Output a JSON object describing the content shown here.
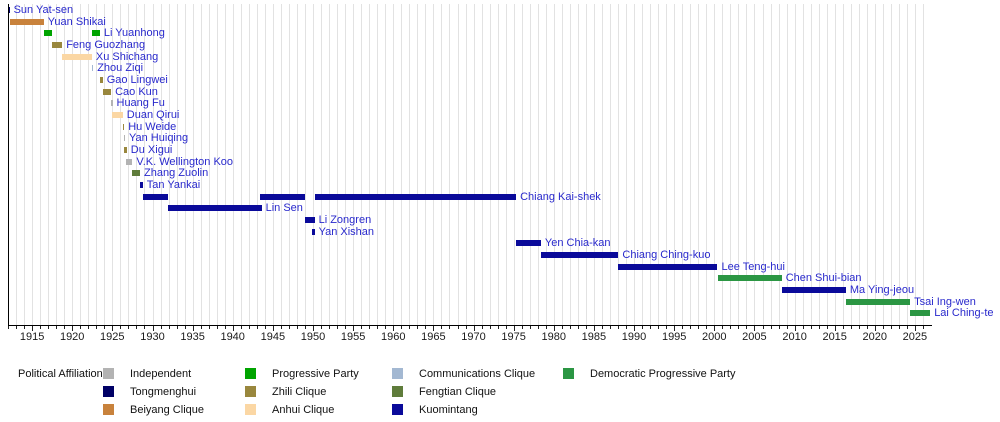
{
  "chart_data": {
    "type": "timeline",
    "title": "",
    "xlabel": "",
    "ylabel": "",
    "grid": "vertical, every year",
    "legend_position": "bottom",
    "x_axis": {
      "min": 1912,
      "max": 2027,
      "minor_tick_interval": 1,
      "major_tick_interval": 5,
      "tick_labels": [
        "1915",
        "1920",
        "1925",
        "1930",
        "1935",
        "1940",
        "1945",
        "1950",
        "1955",
        "1960",
        "1965",
        "1970",
        "1975",
        "1980",
        "1985",
        "1990",
        "1995",
        "2000",
        "2005",
        "2010",
        "2015",
        "2020",
        "2025"
      ]
    },
    "palette": {
      "independent": "#b3b3b3",
      "tongmenghui": "#000066",
      "beiyang": "#c8823c",
      "progressive": "#00a400",
      "zhili": "#99873d",
      "anhui": "#fbd7a4",
      "communications": "#a3b8d2",
      "fengtian": "#5f7c3b",
      "kuomintang": "#0a0a9a",
      "dpp": "#2b9643",
      "label_link": "#2929cc",
      "gridline": "#e2e2e2",
      "axis": "#000000"
    },
    "presidents": [
      {
        "name": "Sun Yat-sen",
        "affiliation": "tongmenghui",
        "terms": [
          [
            1912.0,
            1912.2
          ]
        ]
      },
      {
        "name": "Yuan Shikai",
        "affiliation": "beiyang",
        "terms": [
          [
            1912.2,
            1916.45
          ]
        ]
      },
      {
        "name": "Li Yuanhong",
        "affiliation": "progressive",
        "terms": [
          [
            1916.45,
            1917.5
          ],
          [
            1922.45,
            1923.45
          ]
        ]
      },
      {
        "name": "Feng Guozhang",
        "affiliation": "zhili",
        "terms": [
          [
            1917.5,
            1918.75
          ]
        ]
      },
      {
        "name": "Xu Shichang",
        "affiliation": "anhui",
        "terms": [
          [
            1918.75,
            1922.45
          ]
        ]
      },
      {
        "name": "Zhou Ziqi",
        "affiliation": "communications",
        "terms": [
          [
            1922.42,
            1922.62
          ]
        ]
      },
      {
        "name": "Gao Lingwei",
        "affiliation": "zhili",
        "terms": [
          [
            1923.45,
            1923.8
          ]
        ]
      },
      {
        "name": "Cao Kun",
        "affiliation": "zhili",
        "terms": [
          [
            1923.8,
            1924.85
          ]
        ]
      },
      {
        "name": "Huang Fu",
        "affiliation": "independent",
        "terms": [
          [
            1924.85,
            1925.02
          ]
        ]
      },
      {
        "name": "Duan Qirui",
        "affiliation": "anhui",
        "terms": [
          [
            1924.9,
            1926.3
          ]
        ]
      },
      {
        "name": "Hu Weide",
        "affiliation": "zhili",
        "terms": [
          [
            1926.3,
            1926.48
          ]
        ]
      },
      {
        "name": "Yan Huiqing",
        "affiliation": "independent",
        "terms": [
          [
            1926.4,
            1926.58
          ]
        ]
      },
      {
        "name": "Du Xigui",
        "affiliation": "zhili",
        "terms": [
          [
            1926.5,
            1926.8
          ]
        ]
      },
      {
        "name": "V.K. Wellington Koo",
        "affiliation": "independent",
        "terms": [
          [
            1926.75,
            1927.5
          ]
        ]
      },
      {
        "name": "Zhang Zuolin",
        "affiliation": "fengtian",
        "terms": [
          [
            1927.45,
            1928.45
          ]
        ]
      },
      {
        "name": "Tan Yankai",
        "affiliation": "kuomintang",
        "terms": [
          [
            1928.45,
            1928.8
          ]
        ]
      },
      {
        "name": "Chiang Kai-shek",
        "affiliation": "kuomintang",
        "terms": [
          [
            1928.8,
            1931.95
          ],
          [
            1943.4,
            1949.05
          ],
          [
            1950.2,
            1975.3
          ]
        ]
      },
      {
        "name": "Lin Sen",
        "affiliation": "kuomintang",
        "terms": [
          [
            1931.95,
            1943.6
          ]
        ]
      },
      {
        "name": "Li Zongren",
        "affiliation": "kuomintang",
        "terms": [
          [
            1949.05,
            1950.2
          ]
        ]
      },
      {
        "name": "Yan Xishan",
        "affiliation": "kuomintang",
        "terms": [
          [
            1949.9,
            1950.2
          ]
        ]
      },
      {
        "name": "Yen Chia-kan",
        "affiliation": "kuomintang",
        "terms": [
          [
            1975.3,
            1978.4
          ]
        ]
      },
      {
        "name": "Chiang Ching-kuo",
        "affiliation": "kuomintang",
        "terms": [
          [
            1978.4,
            1988.05
          ]
        ]
      },
      {
        "name": "Lee Teng-hui",
        "affiliation": "kuomintang",
        "terms": [
          [
            1988.05,
            2000.4
          ]
        ]
      },
      {
        "name": "Chen Shui-bian",
        "affiliation": "dpp",
        "terms": [
          [
            2000.4,
            2008.4
          ]
        ]
      },
      {
        "name": "Ma Ying-jeou",
        "affiliation": "kuomintang",
        "terms": [
          [
            2008.4,
            2016.4
          ]
        ]
      },
      {
        "name": "Tsai Ing-wen",
        "affiliation": "dpp",
        "terms": [
          [
            2016.4,
            2024.4
          ]
        ]
      },
      {
        "name": "Lai Ching-te",
        "affiliation": "dpp",
        "terms": [
          [
            2024.4,
            2026.9
          ]
        ]
      }
    ],
    "legend": {
      "title": "Political Affiliation:",
      "columns": [
        [
          {
            "label": "Independent",
            "affiliation": "independent"
          },
          {
            "label": "Tongmenghui",
            "affiliation": "tongmenghui"
          },
          {
            "label": "Beiyang Clique",
            "affiliation": "beiyang"
          }
        ],
        [
          {
            "label": "Progressive Party",
            "affiliation": "progressive"
          },
          {
            "label": "Zhili Clique",
            "affiliation": "zhili"
          },
          {
            "label": "Anhui Clique",
            "affiliation": "anhui"
          }
        ],
        [
          {
            "label": "Communications Clique",
            "affiliation": "communications"
          },
          {
            "label": "Fengtian Clique",
            "affiliation": "fengtian"
          },
          {
            "label": "Kuomintang",
            "affiliation": "kuomintang"
          }
        ],
        [
          {
            "label": "Democratic Progressive Party",
            "affiliation": "dpp"
          }
        ]
      ]
    }
  }
}
